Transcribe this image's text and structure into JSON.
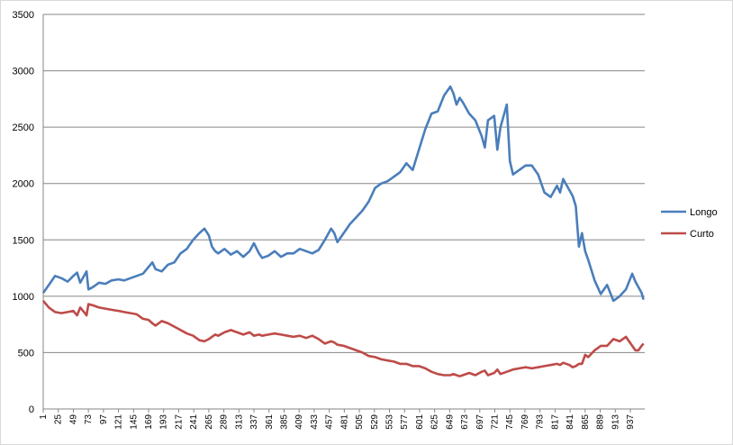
{
  "chart_data": {
    "type": "line",
    "title": "",
    "xlabel": "",
    "ylabel": "",
    "ylim": [
      0,
      3500
    ],
    "yticks": [
      0,
      500,
      1000,
      1500,
      2000,
      2500,
      3000,
      3500
    ],
    "x_tick_labels": [
      "1",
      "25",
      "49",
      "73",
      "97",
      "121",
      "145",
      "169",
      "193",
      "217",
      "241",
      "265",
      "289",
      "313",
      "337",
      "361",
      "385",
      "409",
      "433",
      "457",
      "481",
      "505",
      "529",
      "553",
      "577",
      "601",
      "625",
      "649",
      "673",
      "697",
      "721",
      "745",
      "769",
      "793",
      "817",
      "841",
      "865",
      "889",
      "913",
      "937"
    ],
    "x_range": [
      1,
      960
    ],
    "grid": "horizontal",
    "legend_position": "right",
    "colors": {
      "Longo": "#4a7ebb",
      "Curto": "#be4b48",
      "grid": "#868686"
    },
    "series": [
      {
        "name": "Longo",
        "x": [
          1,
          10,
          20,
          30,
          40,
          49,
          55,
          60,
          66,
          70,
          73,
          80,
          90,
          100,
          110,
          121,
          130,
          140,
          150,
          160,
          169,
          175,
          180,
          190,
          200,
          210,
          220,
          230,
          240,
          250,
          258,
          265,
          270,
          275,
          280,
          290,
          300,
          310,
          320,
          330,
          337,
          345,
          350,
          360,
          370,
          380,
          390,
          400,
          410,
          420,
          430,
          440,
          450,
          460,
          465,
          470,
          480,
          490,
          500,
          510,
          520,
          530,
          540,
          550,
          560,
          570,
          580,
          590,
          600,
          610,
          620,
          630,
          640,
          650,
          655,
          660,
          665,
          670,
          680,
          690,
          700,
          705,
          710,
          720,
          725,
          730,
          740,
          745,
          750,
          760,
          770,
          780,
          790,
          800,
          810,
          820,
          825,
          830,
          840,
          845,
          850,
          855,
          860,
          865,
          870,
          880,
          890,
          900,
          910,
          920,
          930,
          940,
          945,
          950,
          955,
          958
        ],
        "y": [
          1030,
          1100,
          1180,
          1160,
          1130,
          1180,
          1210,
          1120,
          1180,
          1220,
          1060,
          1080,
          1120,
          1110,
          1140,
          1150,
          1140,
          1160,
          1180,
          1200,
          1260,
          1300,
          1240,
          1220,
          1280,
          1300,
          1380,
          1420,
          1500,
          1560,
          1600,
          1540,
          1440,
          1400,
          1380,
          1420,
          1370,
          1400,
          1350,
          1400,
          1470,
          1380,
          1340,
          1360,
          1400,
          1350,
          1380,
          1380,
          1420,
          1400,
          1380,
          1410,
          1500,
          1600,
          1560,
          1480,
          1560,
          1640,
          1700,
          1760,
          1840,
          1960,
          2000,
          2020,
          2060,
          2100,
          2180,
          2120,
          2300,
          2480,
          2620,
          2640,
          2780,
          2860,
          2800,
          2700,
          2760,
          2720,
          2620,
          2560,
          2420,
          2320,
          2560,
          2600,
          2300,
          2500,
          2700,
          2200,
          2080,
          2120,
          2160,
          2160,
          2080,
          1920,
          1880,
          1980,
          1920,
          2040,
          1940,
          1890,
          1800,
          1440,
          1560,
          1400,
          1320,
          1140,
          1020,
          1100,
          960,
          1000,
          1060,
          1200,
          1130,
          1080,
          1030,
          970
        ]
      },
      {
        "name": "Curto",
        "x": [
          1,
          10,
          20,
          30,
          40,
          49,
          55,
          60,
          66,
          70,
          73,
          80,
          90,
          100,
          110,
          121,
          130,
          140,
          150,
          160,
          169,
          175,
          180,
          190,
          200,
          210,
          220,
          230,
          240,
          250,
          258,
          265,
          270,
          275,
          280,
          290,
          300,
          310,
          320,
          330,
          337,
          345,
          350,
          360,
          370,
          380,
          390,
          400,
          410,
          420,
          430,
          440,
          450,
          460,
          465,
          470,
          480,
          490,
          500,
          510,
          520,
          530,
          540,
          550,
          560,
          570,
          580,
          590,
          600,
          610,
          620,
          630,
          640,
          650,
          655,
          660,
          665,
          670,
          680,
          690,
          700,
          705,
          710,
          720,
          725,
          730,
          740,
          745,
          750,
          760,
          770,
          780,
          790,
          800,
          810,
          820,
          825,
          830,
          840,
          845,
          850,
          855,
          860,
          865,
          870,
          880,
          890,
          900,
          910,
          920,
          930,
          940,
          945,
          950,
          955,
          958
        ],
        "y": [
          960,
          900,
          860,
          850,
          860,
          870,
          830,
          900,
          860,
          830,
          930,
          920,
          900,
          890,
          880,
          870,
          860,
          850,
          840,
          800,
          790,
          760,
          740,
          780,
          760,
          730,
          700,
          670,
          650,
          610,
          600,
          620,
          640,
          660,
          650,
          680,
          700,
          680,
          660,
          680,
          650,
          660,
          650,
          660,
          670,
          660,
          650,
          640,
          650,
          630,
          650,
          620,
          580,
          600,
          590,
          570,
          560,
          540,
          520,
          500,
          470,
          460,
          440,
          430,
          420,
          400,
          400,
          380,
          380,
          360,
          330,
          310,
          300,
          300,
          310,
          300,
          290,
          300,
          320,
          300,
          330,
          340,
          300,
          320,
          350,
          310,
          330,
          340,
          350,
          360,
          370,
          360,
          370,
          380,
          390,
          400,
          390,
          410,
          390,
          370,
          380,
          400,
          400,
          480,
          460,
          520,
          560,
          560,
          620,
          600,
          640,
          560,
          520,
          520,
          560,
          580
        ]
      }
    ]
  }
}
